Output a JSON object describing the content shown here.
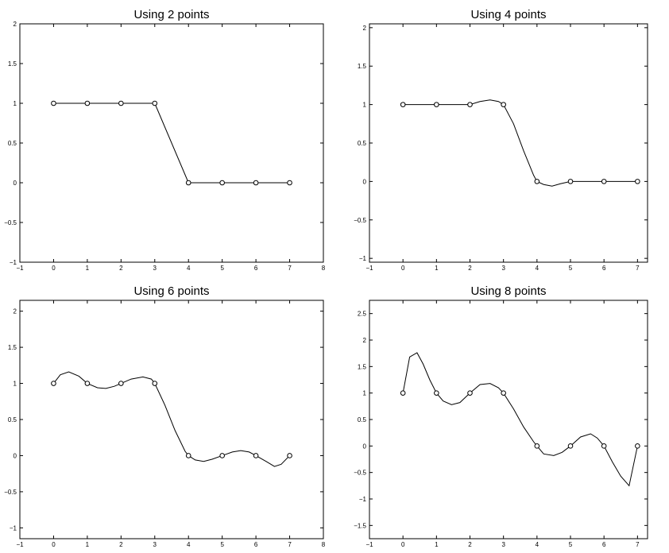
{
  "chart_data": [
    {
      "type": "line",
      "title": "Using 2 points",
      "xlim": [
        -1,
        8
      ],
      "ylim": [
        -1,
        2
      ],
      "xticks": [
        -1,
        0,
        1,
        2,
        3,
        4,
        5,
        6,
        7,
        8
      ],
      "yticks": [
        -1,
        -0.5,
        0,
        0.5,
        1,
        1.5,
        2
      ],
      "xticklabels": [
        "−1",
        "0",
        "1",
        "2",
        "3",
        "4",
        "5",
        "6",
        "7",
        "8"
      ],
      "yticklabels": [
        "−1",
        "−0.5",
        "0",
        "0.5",
        "1",
        "1.5",
        "2"
      ],
      "grid": false,
      "points": {
        "x": [
          0,
          1,
          2,
          3,
          4,
          5,
          6,
          7
        ],
        "y": [
          1,
          1,
          1,
          1,
          0,
          0,
          0,
          0
        ]
      },
      "curve": {
        "x": [
          0,
          1,
          2,
          3,
          4,
          5,
          6,
          7
        ],
        "y": [
          1,
          1,
          1,
          1,
          0,
          0,
          0,
          0
        ]
      }
    },
    {
      "type": "line",
      "title": "Using 4 points",
      "xlim": [
        -1,
        7.3
      ],
      "ylim": [
        -1.05,
        2.05
      ],
      "xticks": [
        -1,
        0,
        1,
        2,
        3,
        4,
        5,
        6,
        7
      ],
      "yticks": [
        -1,
        -0.5,
        0,
        0.5,
        1,
        1.5,
        2
      ],
      "xticklabels": [
        "−1",
        "0",
        "1",
        "2",
        "3",
        "4",
        "5",
        "6",
        "7"
      ],
      "yticklabels": [
        "−1",
        "−0.5",
        "0",
        "0.5",
        "1",
        "1.5",
        "2"
      ],
      "grid": false,
      "points": {
        "x": [
          0,
          1,
          2,
          3,
          4,
          5,
          6,
          7
        ],
        "y": [
          1,
          1,
          1,
          1,
          0,
          0,
          0,
          0
        ]
      },
      "curve": {
        "x": [
          0,
          1,
          2,
          2.3,
          2.6,
          2.85,
          3,
          3.3,
          3.6,
          3.9,
          4,
          4.2,
          4.45,
          4.7,
          5,
          6,
          7
        ],
        "y": [
          1,
          1,
          1,
          1.04,
          1.06,
          1.04,
          1,
          0.75,
          0.4,
          0.08,
          0,
          -0.04,
          -0.06,
          -0.03,
          0,
          0,
          0
        ]
      }
    },
    {
      "type": "line",
      "title": "Using 6 points",
      "xlim": [
        -1,
        8
      ],
      "ylim": [
        -1.15,
        2.15
      ],
      "xticks": [
        -1,
        0,
        1,
        2,
        3,
        4,
        5,
        6,
        7,
        8
      ],
      "yticks": [
        -1,
        -0.5,
        0,
        0.5,
        1,
        1.5,
        2
      ],
      "xticklabels": [
        "−1",
        "0",
        "1",
        "2",
        "3",
        "4",
        "5",
        "6",
        "7",
        "8"
      ],
      "yticklabels": [
        "−1",
        "−0.5",
        "0",
        "0.5",
        "1",
        "1.5",
        "2"
      ],
      "grid": false,
      "points": {
        "x": [
          0,
          1,
          2,
          3,
          4,
          5,
          6,
          7
        ],
        "y": [
          1,
          1,
          1,
          1,
          0,
          0,
          0,
          0
        ]
      },
      "curve": {
        "x": [
          0,
          0.2,
          0.45,
          0.75,
          1,
          1.3,
          1.55,
          1.8,
          2,
          2.3,
          2.65,
          2.9,
          3,
          3.3,
          3.6,
          3.9,
          4,
          4.2,
          4.45,
          4.7,
          5,
          5.3,
          5.55,
          5.8,
          6,
          6.3,
          6.55,
          6.75,
          7
        ],
        "y": [
          1,
          1.12,
          1.16,
          1.1,
          1,
          0.94,
          0.93,
          0.96,
          1,
          1.06,
          1.09,
          1.06,
          1,
          0.7,
          0.35,
          0.06,
          0,
          -0.06,
          -0.08,
          -0.05,
          0,
          0.05,
          0.07,
          0.05,
          0,
          -0.08,
          -0.15,
          -0.12,
          0
        ]
      }
    },
    {
      "type": "line",
      "title": "Using 8 points",
      "xlim": [
        -1,
        7.3
      ],
      "ylim": [
        -1.75,
        2.75
      ],
      "xticks": [
        -1,
        0,
        1,
        2,
        3,
        4,
        5,
        6,
        7
      ],
      "yticks": [
        -1.5,
        -1,
        -0.5,
        0,
        0.5,
        1,
        1.5,
        2,
        2.5
      ],
      "xticklabels": [
        "−1",
        "0",
        "1",
        "2",
        "3",
        "4",
        "5",
        "6",
        "7"
      ],
      "yticklabels": [
        "−1.5",
        "−1",
        "−0.5",
        "0",
        "0.5",
        "1",
        "1.5",
        "2",
        "2.5"
      ],
      "grid": false,
      "points": {
        "x": [
          0,
          1,
          2,
          3,
          4,
          5,
          6,
          7
        ],
        "y": [
          1,
          1,
          1,
          1,
          0,
          0,
          0,
          0
        ]
      },
      "curve": {
        "x": [
          0,
          0.2,
          0.42,
          0.6,
          0.8,
          1,
          1.2,
          1.45,
          1.7,
          2,
          2.3,
          2.6,
          2.85,
          3,
          3.3,
          3.6,
          3.9,
          4,
          4.2,
          4.5,
          4.75,
          5,
          5.3,
          5.6,
          5.8,
          6,
          6.25,
          6.5,
          6.75,
          7
        ],
        "y": [
          1,
          1.68,
          1.76,
          1.55,
          1.25,
          1,
          0.85,
          0.78,
          0.82,
          1,
          1.16,
          1.18,
          1.1,
          1,
          0.7,
          0.36,
          0.08,
          0,
          -0.15,
          -0.18,
          -0.12,
          0,
          0.17,
          0.23,
          0.15,
          0,
          -0.3,
          -0.57,
          -0.75,
          0
        ]
      }
    }
  ]
}
